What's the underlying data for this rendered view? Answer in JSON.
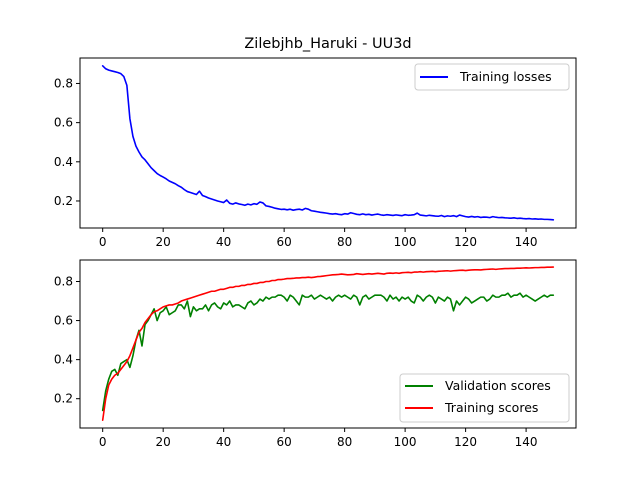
{
  "chart_data": [
    {
      "type": "line",
      "title": "Zilebjhb_Haruki - UU3d",
      "xlabel": "",
      "ylabel": "",
      "xlim": [
        -7.5,
        156.5
      ],
      "ylim": [
        0.062,
        0.93
      ],
      "xticks": [
        0,
        20,
        40,
        60,
        80,
        100,
        120,
        140
      ],
      "yticks": [
        0.2,
        0.4,
        0.6,
        0.8
      ],
      "x_tick_labels": [
        "0",
        "20",
        "40",
        "60",
        "80",
        "100",
        "120",
        "140"
      ],
      "y_tick_labels": [
        "0.2",
        "0.4",
        "0.6",
        "0.8"
      ],
      "grid": false,
      "legend_position": "upper right",
      "series": [
        {
          "name": "Training losses",
          "color": "#0000ff",
          "x_start": 0,
          "x_step": 1,
          "values": [
            0.89,
            0.875,
            0.868,
            0.864,
            0.86,
            0.856,
            0.85,
            0.835,
            0.79,
            0.62,
            0.53,
            0.48,
            0.45,
            0.425,
            0.41,
            0.39,
            0.37,
            0.355,
            0.34,
            0.33,
            0.322,
            0.313,
            0.302,
            0.295,
            0.288,
            0.278,
            0.27,
            0.258,
            0.248,
            0.243,
            0.238,
            0.233,
            0.25,
            0.228,
            0.222,
            0.215,
            0.21,
            0.205,
            0.2,
            0.196,
            0.192,
            0.205,
            0.188,
            0.184,
            0.19,
            0.185,
            0.182,
            0.178,
            0.184,
            0.18,
            0.186,
            0.183,
            0.195,
            0.19,
            0.175,
            0.172,
            0.168,
            0.163,
            0.16,
            0.157,
            0.158,
            0.155,
            0.158,
            0.153,
            0.156,
            0.158,
            0.154,
            0.162,
            0.158,
            0.15,
            0.148,
            0.145,
            0.142,
            0.14,
            0.138,
            0.135,
            0.133,
            0.135,
            0.132,
            0.13,
            0.135,
            0.133,
            0.14,
            0.136,
            0.132,
            0.13,
            0.134,
            0.13,
            0.132,
            0.128,
            0.131,
            0.133,
            0.129,
            0.127,
            0.13,
            0.128,
            0.126,
            0.129,
            0.127,
            0.125,
            0.13,
            0.127,
            0.128,
            0.13,
            0.138,
            0.128,
            0.126,
            0.124,
            0.127,
            0.125,
            0.123,
            0.122,
            0.126,
            0.12,
            0.124,
            0.122,
            0.125,
            0.12,
            0.128,
            0.124,
            0.12,
            0.118,
            0.121,
            0.118,
            0.12,
            0.116,
            0.118,
            0.117,
            0.115,
            0.12,
            0.117,
            0.115,
            0.116,
            0.114,
            0.113,
            0.112,
            0.114,
            0.111,
            0.112,
            0.11,
            0.109,
            0.11,
            0.108,
            0.109,
            0.107,
            0.108,
            0.106,
            0.106,
            0.105,
            0.104
          ]
        }
      ]
    },
    {
      "type": "line",
      "title": "",
      "xlabel": "",
      "ylabel": "",
      "xlim": [
        -7.5,
        156.5
      ],
      "ylim": [
        0.05,
        0.91
      ],
      "xticks": [
        0,
        20,
        40,
        60,
        80,
        100,
        120,
        140
      ],
      "yticks": [
        0.2,
        0.4,
        0.6,
        0.8
      ],
      "x_tick_labels": [
        "0",
        "20",
        "40",
        "60",
        "80",
        "100",
        "120",
        "140"
      ],
      "y_tick_labels": [
        "0.2",
        "0.4",
        "0.6",
        "0.8"
      ],
      "grid": false,
      "legend_position": "lower right",
      "series": [
        {
          "name": "Validation scores",
          "color": "#008000",
          "x_start": 0,
          "x_step": 1,
          "values": [
            0.14,
            0.24,
            0.3,
            0.34,
            0.35,
            0.32,
            0.38,
            0.39,
            0.4,
            0.36,
            0.42,
            0.5,
            0.55,
            0.47,
            0.58,
            0.6,
            0.63,
            0.66,
            0.6,
            0.64,
            0.65,
            0.67,
            0.63,
            0.64,
            0.65,
            0.68,
            0.68,
            0.66,
            0.7,
            0.62,
            0.67,
            0.65,
            0.66,
            0.66,
            0.68,
            0.65,
            0.68,
            0.69,
            0.67,
            0.66,
            0.69,
            0.68,
            0.7,
            0.67,
            0.68,
            0.68,
            0.67,
            0.66,
            0.69,
            0.7,
            0.68,
            0.69,
            0.71,
            0.7,
            0.72,
            0.71,
            0.72,
            0.72,
            0.73,
            0.73,
            0.72,
            0.7,
            0.73,
            0.72,
            0.7,
            0.68,
            0.73,
            0.72,
            0.72,
            0.73,
            0.71,
            0.72,
            0.73,
            0.72,
            0.71,
            0.72,
            0.7,
            0.72,
            0.73,
            0.72,
            0.73,
            0.72,
            0.71,
            0.73,
            0.72,
            0.68,
            0.72,
            0.73,
            0.71,
            0.72,
            0.73,
            0.73,
            0.73,
            0.72,
            0.7,
            0.73,
            0.71,
            0.72,
            0.7,
            0.72,
            0.71,
            0.72,
            0.7,
            0.69,
            0.73,
            0.72,
            0.7,
            0.72,
            0.73,
            0.72,
            0.69,
            0.72,
            0.71,
            0.7,
            0.72,
            0.71,
            0.65,
            0.7,
            0.68,
            0.7,
            0.72,
            0.71,
            0.69,
            0.7,
            0.71,
            0.72,
            0.72,
            0.7,
            0.71,
            0.73,
            0.72,
            0.72,
            0.73,
            0.73,
            0.74,
            0.72,
            0.73,
            0.73,
            0.74,
            0.72,
            0.73,
            0.72,
            0.71,
            0.7,
            0.71,
            0.72,
            0.73,
            0.72,
            0.73,
            0.73
          ]
        },
        {
          "name": "Training scores",
          "color": "#ff0000",
          "x_start": 0,
          "x_step": 1,
          "values": [
            0.09,
            0.2,
            0.27,
            0.3,
            0.32,
            0.33,
            0.35,
            0.37,
            0.39,
            0.42,
            0.46,
            0.5,
            0.54,
            0.56,
            0.59,
            0.61,
            0.63,
            0.645,
            0.65,
            0.66,
            0.67,
            0.675,
            0.68,
            0.68,
            0.685,
            0.69,
            0.7,
            0.705,
            0.71,
            0.715,
            0.72,
            0.725,
            0.73,
            0.735,
            0.74,
            0.745,
            0.75,
            0.75,
            0.755,
            0.76,
            0.76,
            0.765,
            0.77,
            0.77,
            0.775,
            0.775,
            0.78,
            0.78,
            0.785,
            0.785,
            0.79,
            0.79,
            0.795,
            0.795,
            0.8,
            0.8,
            0.805,
            0.805,
            0.81,
            0.81,
            0.812,
            0.815,
            0.815,
            0.816,
            0.818,
            0.818,
            0.82,
            0.82,
            0.822,
            0.82,
            0.822,
            0.825,
            0.826,
            0.828,
            0.83,
            0.832,
            0.834,
            0.835,
            0.836,
            0.838,
            0.836,
            0.834,
            0.835,
            0.836,
            0.84,
            0.838,
            0.836,
            0.838,
            0.84,
            0.838,
            0.84,
            0.842,
            0.84,
            0.838,
            0.842,
            0.843,
            0.842,
            0.844,
            0.842,
            0.845,
            0.846,
            0.847,
            0.845,
            0.848,
            0.848,
            0.85,
            0.848,
            0.85,
            0.851,
            0.852,
            0.85,
            0.852,
            0.853,
            0.854,
            0.855,
            0.853,
            0.855,
            0.856,
            0.857,
            0.858,
            0.856,
            0.858,
            0.859,
            0.86,
            0.86,
            0.859,
            0.861,
            0.862,
            0.863,
            0.864,
            0.862,
            0.864,
            0.865,
            0.866,
            0.866,
            0.867,
            0.867,
            0.868,
            0.868,
            0.869,
            0.87,
            0.869,
            0.87,
            0.871,
            0.871,
            0.872,
            0.872,
            0.873,
            0.873,
            0.874
          ]
        }
      ]
    }
  ]
}
